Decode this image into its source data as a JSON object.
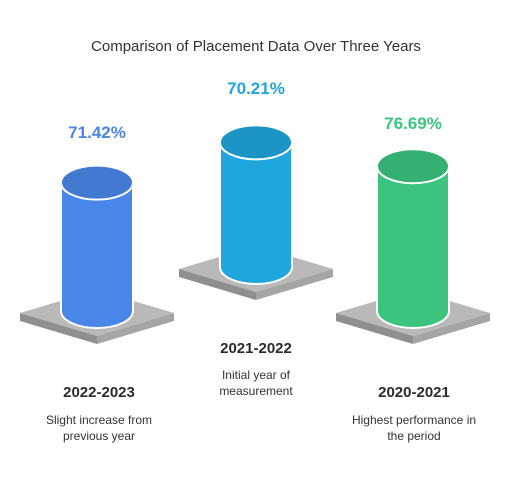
{
  "chart_data": {
    "type": "bar",
    "title": "Comparison of Placement Data Over Three Years",
    "categories": [
      "2022-2023",
      "2021-2022",
      "2020-2021"
    ],
    "values": [
      71.42,
      70.21,
      76.69
    ],
    "value_labels": [
      "71.42%",
      "70.21%",
      "76.69%"
    ],
    "descriptions": [
      "Slight increase from previous year",
      "Initial year of measurement",
      "Highest performance in the period"
    ],
    "colors": [
      "#4a86e8",
      "#1fa6dc",
      "#3cc47f"
    ],
    "xlabel": "",
    "ylabel": ""
  }
}
